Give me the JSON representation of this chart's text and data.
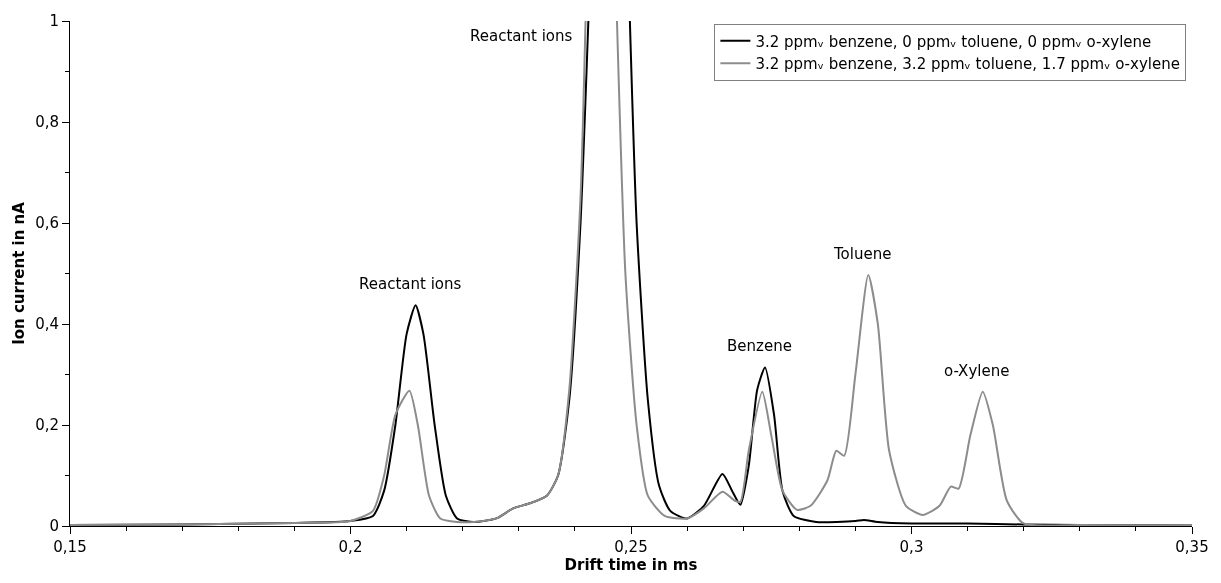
{
  "chart_data": {
    "type": "line",
    "xlabel": "Drift time in ms",
    "ylabel": "Ion current in nA",
    "xlim": [
      0.15,
      0.35
    ],
    "xticks": [
      {
        "value": 0.15,
        "label": "0,15"
      },
      {
        "value": 0.2,
        "label": "0,2"
      },
      {
        "value": 0.25,
        "label": "0,25"
      },
      {
        "value": 0.3,
        "label": "0,3"
      },
      {
        "value": 0.35,
        "label": "0,35"
      }
    ],
    "ylim": [
      0,
      1
    ],
    "yticks": [
      0,
      {
        "value": 0.2,
        "label": "0,2"
      },
      {
        "value": 0.4,
        "label": "0,4"
      },
      {
        "value": 0.6,
        "label": "0,6"
      },
      {
        "value": 0.8,
        "label": "0,8"
      },
      1
    ],
    "legend": "top right",
    "marker": "none",
    "line_style": "solid",
    "series": [
      {
        "name": "3.2 ppmᵥ benzene, 0 ppmᵥ toluene, 0 ppmᵥ o-xylene",
        "color": "#000000",
        "x": [
          0.15,
          0.17,
          0.19,
          0.2,
          0.204,
          0.206,
          0.208,
          0.21,
          0.2116,
          0.213,
          0.215,
          0.217,
          0.219,
          0.222,
          0.226,
          0.229,
          0.232,
          0.235,
          0.237,
          0.239,
          0.241,
          0.2424,
          0.245,
          0.2498,
          0.251,
          0.253,
          0.255,
          0.257,
          0.26,
          0.263,
          0.2663,
          0.268,
          0.2695,
          0.271,
          0.2725,
          0.2739,
          0.2755,
          0.277,
          0.279,
          0.283,
          0.29,
          0.2915,
          0.294,
          0.3,
          0.31,
          0.32,
          0.33,
          0.35
        ],
        "values": [
          0.002,
          0.003,
          0.006,
          0.01,
          0.02,
          0.07,
          0.2,
          0.38,
          0.437,
          0.38,
          0.2,
          0.06,
          0.015,
          0.008,
          0.015,
          0.035,
          0.045,
          0.06,
          0.1,
          0.25,
          0.6,
          1,
          null,
          1,
          0.6,
          0.25,
          0.08,
          0.03,
          0.015,
          0.04,
          0.103,
          0.07,
          0.042,
          0.12,
          0.27,
          0.314,
          0.22,
          0.07,
          0.02,
          0.008,
          0.01,
          0.012,
          0.008,
          0.005,
          0.005,
          0.003,
          0.002,
          0.001
        ]
      },
      {
        "name": "3.2 ppmᵥ benzene, 3.2 ppmᵥ toluene, 1.7 ppmᵥ o-xylene",
        "color": "#8c8c8c",
        "x": [
          0.15,
          0.17,
          0.19,
          0.2,
          0.204,
          0.206,
          0.208,
          0.2105,
          0.212,
          0.214,
          0.216,
          0.219,
          0.222,
          0.226,
          0.229,
          0.232,
          0.235,
          0.237,
          0.239,
          0.241,
          0.2419,
          0.245,
          0.2475,
          0.249,
          0.251,
          0.253,
          0.256,
          0.26,
          0.263,
          0.2663,
          0.2685,
          0.2695,
          0.271,
          0.2734,
          0.275,
          0.277,
          0.2796,
          0.282,
          0.285,
          0.2866,
          0.288,
          0.29,
          0.2923,
          0.294,
          0.296,
          0.299,
          0.302,
          0.305,
          0.307,
          0.3084,
          0.3105,
          0.3127,
          0.3145,
          0.317,
          0.32,
          0.33,
          0.35
        ],
        "values": [
          0.002,
          0.003,
          0.006,
          0.01,
          0.03,
          0.1,
          0.22,
          0.268,
          0.2,
          0.06,
          0.015,
          0.008,
          0.008,
          0.015,
          0.035,
          0.045,
          0.06,
          0.1,
          0.27,
          0.65,
          1,
          null,
          1,
          0.5,
          0.2,
          0.06,
          0.02,
          0.015,
          0.035,
          0.068,
          0.05,
          0.048,
          0.15,
          0.266,
          0.18,
          0.07,
          0.032,
          0.04,
          0.09,
          0.149,
          0.139,
          0.3,
          0.497,
          0.4,
          0.15,
          0.04,
          0.022,
          0.04,
          0.078,
          0.074,
          0.18,
          0.266,
          0.2,
          0.05,
          0.005,
          0.002,
          0.001
        ]
      }
    ],
    "annotations": [
      {
        "text": "Reactant ions",
        "x": 0.2116,
        "y": 0.437
      },
      {
        "text": "Reactant ions",
        "x": 0.2419,
        "y": 1
      },
      {
        "text": "Benzene",
        "x": 0.2739,
        "y": 0.314
      },
      {
        "text": "Toluene",
        "x": 0.2923,
        "y": 0.497
      },
      {
        "text": "o-Xylene",
        "x": 0.3127,
        "y": 0.266
      }
    ]
  }
}
